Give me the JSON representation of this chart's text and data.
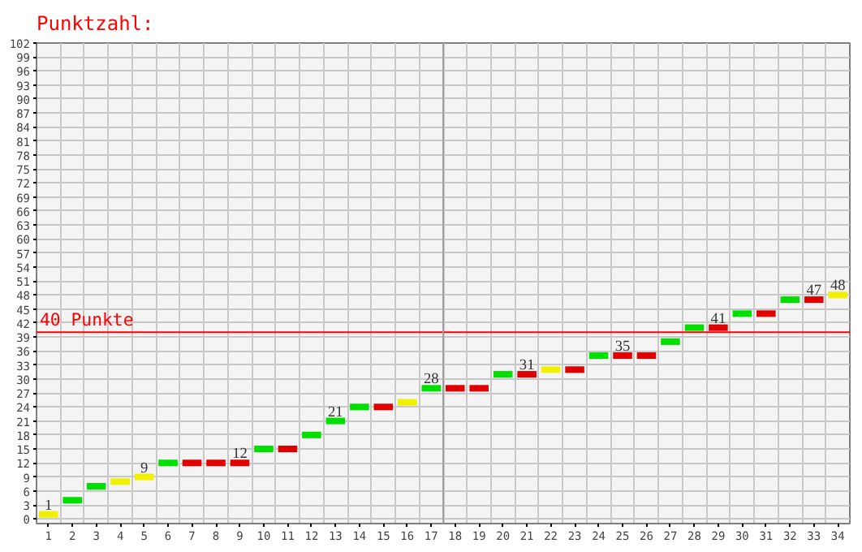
{
  "chart_data": {
    "type": "scatter",
    "title": "Punktzahl:",
    "marker": "square",
    "x": [
      1,
      2,
      3,
      4,
      5,
      6,
      7,
      8,
      9,
      10,
      11,
      12,
      13,
      14,
      15,
      16,
      17,
      18,
      19,
      20,
      21,
      22,
      23,
      24,
      25,
      26,
      27,
      28,
      29,
      30,
      31,
      32,
      33,
      34
    ],
    "values": [
      1,
      4,
      7,
      8,
      9,
      12,
      12,
      12,
      12,
      15,
      15,
      18,
      21,
      24,
      24,
      25,
      28,
      28,
      28,
      31,
      31,
      32,
      32,
      35,
      35,
      35,
      38,
      41,
      41,
      44,
      44,
      47,
      47,
      48
    ],
    "colors": [
      "#f0f000",
      "#00e000",
      "#00e000",
      "#f0f000",
      "#f0f000",
      "#00e000",
      "#e00000",
      "#e00000",
      "#e00000",
      "#00e000",
      "#e00000",
      "#00e000",
      "#00e000",
      "#00e000",
      "#e00000",
      "#f0f000",
      "#00e000",
      "#e00000",
      "#e00000",
      "#00e000",
      "#e00000",
      "#f0f000",
      "#e00000",
      "#00e000",
      "#e00000",
      "#e00000",
      "#00e000",
      "#00e000",
      "#e00000",
      "#00e000",
      "#e00000",
      "#00e000",
      "#e00000",
      "#f0f000"
    ],
    "value_labels": [
      "1",
      null,
      null,
      null,
      "9",
      null,
      null,
      null,
      "12",
      null,
      null,
      null,
      "21",
      null,
      null,
      null,
      "28",
      null,
      null,
      null,
      "31",
      null,
      null,
      null,
      "35",
      null,
      null,
      null,
      "41",
      null,
      null,
      null,
      "47",
      "48"
    ],
    "xlim": [
      0.5,
      34.5
    ],
    "xticks": [
      1,
      2,
      3,
      4,
      5,
      6,
      7,
      8,
      9,
      10,
      11,
      12,
      13,
      14,
      15,
      16,
      17,
      18,
      19,
      20,
      21,
      22,
      23,
      24,
      25,
      26,
      27,
      28,
      29,
      30,
      31,
      32,
      33,
      34
    ],
    "ylim": [
      -1,
      102
    ],
    "yticks": [
      0,
      3,
      6,
      9,
      12,
      15,
      18,
      21,
      24,
      27,
      30,
      33,
      36,
      39,
      42,
      45,
      48,
      51,
      54,
      57,
      60,
      63,
      66,
      69,
      72,
      75,
      78,
      81,
      84,
      87,
      90,
      93,
      96,
      99,
      102
    ],
    "grid": true,
    "ref_lines": [
      {
        "axis": "y",
        "value": 40,
        "label": "40 Punkte",
        "color": "#ff0000"
      },
      {
        "axis": "x",
        "value": 17.5,
        "label": null,
        "color": "#a0a0a0"
      }
    ]
  }
}
